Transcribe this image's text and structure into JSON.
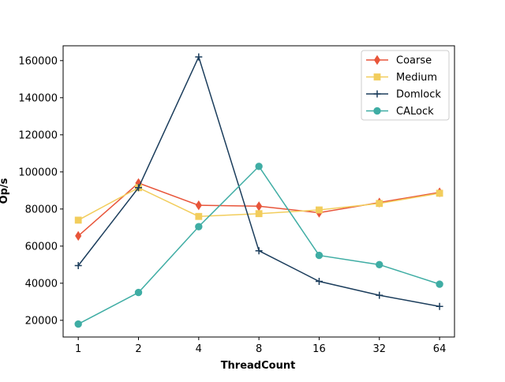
{
  "chart_data": {
    "type": "line",
    "xlabel": "ThreadCount",
    "ylabel": "Op/s",
    "x_scale": "log2",
    "categories": [
      "1",
      "2",
      "4",
      "8",
      "16",
      "32",
      "64"
    ],
    "x": [
      1,
      2,
      4,
      8,
      16,
      32,
      64
    ],
    "xlim": [
      0.84,
      76
    ],
    "ylim": [
      11000,
      168000
    ],
    "yticks": [
      20000,
      40000,
      60000,
      80000,
      100000,
      120000,
      140000,
      160000
    ],
    "ytick_labels": [
      "20000",
      "40000",
      "60000",
      "80000",
      "100000",
      "120000",
      "140000",
      "160000"
    ],
    "grid": false,
    "legend_position": "top-right",
    "series": [
      {
        "name": "Coarse",
        "color": "#e8553a",
        "marker": "thin_diamond",
        "values": [
          65500,
          94000,
          82000,
          81500,
          78000,
          83500,
          89000
        ]
      },
      {
        "name": "Medium",
        "color": "#f2cd5c",
        "marker": "square",
        "values": [
          74000,
          91500,
          76000,
          77500,
          79500,
          83000,
          88500
        ]
      },
      {
        "name": "Domlock",
        "color": "#1b3d5c",
        "marker": "plus",
        "values": [
          49500,
          91500,
          162000,
          57500,
          41000,
          33500,
          27500
        ]
      },
      {
        "name": "CALock",
        "color": "#3fada4",
        "marker": "circle",
        "values": [
          18000,
          35000,
          70500,
          103000,
          55000,
          50000,
          39500
        ]
      }
    ]
  }
}
